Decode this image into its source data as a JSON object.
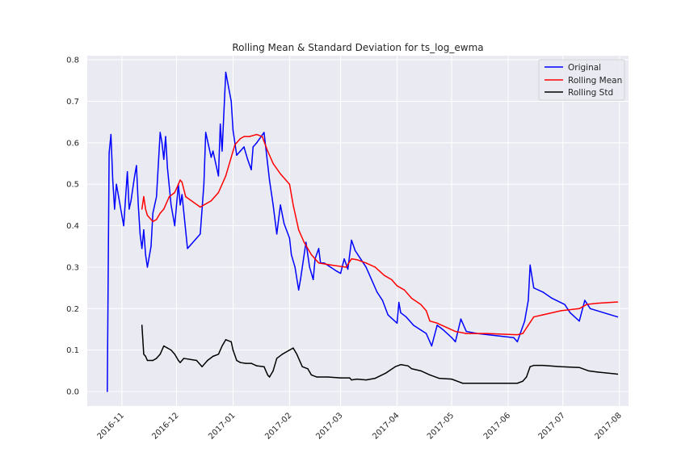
{
  "chart_data": {
    "type": "line",
    "title": "Rolling Mean & Standard Deviation for ts_log_ewma",
    "xlabel": "",
    "ylabel": "",
    "xlim": [
      "2016-10-13",
      "2017-08-06"
    ],
    "ylim": [
      -0.035,
      0.81
    ],
    "grid": true,
    "legend_position": "top-right",
    "x_ticks": [
      "2016-11-01",
      "2016-12-01",
      "2017-01-01",
      "2017-02-01",
      "2017-03-01",
      "2017-04-01",
      "2017-05-01",
      "2017-06-01",
      "2017-07-01",
      "2017-08-01"
    ],
    "x_tick_labels": [
      "2016-11",
      "2016-12",
      "2017-01",
      "2017-02",
      "2017-03",
      "2017-04",
      "2017-05",
      "2017-06",
      "2017-07",
      "2017-08"
    ],
    "y_ticks": [
      0.0,
      0.1,
      0.2,
      0.3,
      0.4,
      0.5,
      0.6,
      0.7,
      0.8
    ],
    "y_tick_labels": [
      "0.0",
      "0.1",
      "0.2",
      "0.3",
      "0.4",
      "0.5",
      "0.6",
      "0.7",
      "0.8"
    ],
    "series": [
      {
        "name": "Original",
        "color": "#0000ff",
        "points": [
          [
            "2016-10-24",
            0.0
          ],
          [
            "2016-10-25",
            0.575
          ],
          [
            "2016-10-26",
            0.62
          ],
          [
            "2016-10-27",
            0.51
          ],
          [
            "2016-10-28",
            0.44
          ],
          [
            "2016-10-29",
            0.5
          ],
          [
            "2016-10-31",
            0.45
          ],
          [
            "2016-11-02",
            0.4
          ],
          [
            "2016-11-04",
            0.53
          ],
          [
            "2016-11-05",
            0.44
          ],
          [
            "2016-11-06",
            0.46
          ],
          [
            "2016-11-08",
            0.52
          ],
          [
            "2016-11-09",
            0.545
          ],
          [
            "2016-11-10",
            0.45
          ],
          [
            "2016-11-11",
            0.38
          ],
          [
            "2016-11-12",
            0.345
          ],
          [
            "2016-11-13",
            0.39
          ],
          [
            "2016-11-14",
            0.33
          ],
          [
            "2016-11-15",
            0.3
          ],
          [
            "2016-11-17",
            0.35
          ],
          [
            "2016-11-18",
            0.43
          ],
          [
            "2016-11-20",
            0.47
          ],
          [
            "2016-11-22",
            0.625
          ],
          [
            "2016-11-23",
            0.6
          ],
          [
            "2016-11-24",
            0.56
          ],
          [
            "2016-11-25",
            0.615
          ],
          [
            "2016-11-26",
            0.54
          ],
          [
            "2016-11-28",
            0.45
          ],
          [
            "2016-11-30",
            0.4
          ],
          [
            "2016-12-02",
            0.5
          ],
          [
            "2016-12-03",
            0.45
          ],
          [
            "2016-12-04",
            0.475
          ],
          [
            "2016-12-07",
            0.345
          ],
          [
            "2016-12-14",
            0.38
          ],
          [
            "2016-12-16",
            0.5
          ],
          [
            "2016-12-17",
            0.625
          ],
          [
            "2016-12-20",
            0.565
          ],
          [
            "2016-12-21",
            0.58
          ],
          [
            "2016-12-24",
            0.52
          ],
          [
            "2016-12-25",
            0.645
          ],
          [
            "2016-12-26",
            0.58
          ],
          [
            "2016-12-28",
            0.77
          ],
          [
            "2016-12-31",
            0.7
          ],
          [
            "2017-01-01",
            0.63
          ],
          [
            "2017-01-03",
            0.57
          ],
          [
            "2017-01-05",
            0.58
          ],
          [
            "2017-01-07",
            0.59
          ],
          [
            "2017-01-09",
            0.56
          ],
          [
            "2017-01-11",
            0.535
          ],
          [
            "2017-01-12",
            0.59
          ],
          [
            "2017-01-14",
            0.6
          ],
          [
            "2017-01-18",
            0.625
          ],
          [
            "2017-01-21",
            0.51
          ],
          [
            "2017-01-23",
            0.45
          ],
          [
            "2017-01-25",
            0.38
          ],
          [
            "2017-01-27",
            0.45
          ],
          [
            "2017-01-29",
            0.405
          ],
          [
            "2017-02-01",
            0.37
          ],
          [
            "2017-02-02",
            0.33
          ],
          [
            "2017-02-04",
            0.3
          ],
          [
            "2017-02-06",
            0.245
          ],
          [
            "2017-02-07",
            0.27
          ],
          [
            "2017-02-10",
            0.36
          ],
          [
            "2017-02-12",
            0.3
          ],
          [
            "2017-02-14",
            0.27
          ],
          [
            "2017-02-15",
            0.32
          ],
          [
            "2017-02-17",
            0.345
          ],
          [
            "2017-02-18",
            0.31
          ],
          [
            "2017-02-20",
            0.31
          ],
          [
            "2017-02-27",
            0.29
          ],
          [
            "2017-03-01",
            0.285
          ],
          [
            "2017-03-03",
            0.32
          ],
          [
            "2017-03-05",
            0.295
          ],
          [
            "2017-03-07",
            0.365
          ],
          [
            "2017-03-09",
            0.34
          ],
          [
            "2017-03-12",
            0.32
          ],
          [
            "2017-03-15",
            0.3
          ],
          [
            "2017-03-18",
            0.27
          ],
          [
            "2017-03-21",
            0.24
          ],
          [
            "2017-03-24",
            0.22
          ],
          [
            "2017-03-27",
            0.185
          ],
          [
            "2017-04-01",
            0.165
          ],
          [
            "2017-04-02",
            0.215
          ],
          [
            "2017-04-03",
            0.19
          ],
          [
            "2017-04-06",
            0.18
          ],
          [
            "2017-04-10",
            0.16
          ],
          [
            "2017-04-17",
            0.14
          ],
          [
            "2017-04-20",
            0.11
          ],
          [
            "2017-04-23",
            0.16
          ],
          [
            "2017-04-26",
            0.15
          ],
          [
            "2017-05-01",
            0.13
          ],
          [
            "2017-05-03",
            0.12
          ],
          [
            "2017-05-06",
            0.175
          ],
          [
            "2017-05-09",
            0.145
          ],
          [
            "2017-05-15",
            0.14
          ],
          [
            "2017-06-04",
            0.13
          ],
          [
            "2017-06-06",
            0.12
          ],
          [
            "2017-06-10",
            0.17
          ],
          [
            "2017-06-12",
            0.22
          ],
          [
            "2017-06-13",
            0.305
          ],
          [
            "2017-06-15",
            0.25
          ],
          [
            "2017-06-20",
            0.24
          ],
          [
            "2017-06-25",
            0.225
          ],
          [
            "2017-07-02",
            0.21
          ],
          [
            "2017-07-05",
            0.19
          ],
          [
            "2017-07-10",
            0.17
          ],
          [
            "2017-07-13",
            0.22
          ],
          [
            "2017-07-16",
            0.2
          ],
          [
            "2017-07-31",
            0.18
          ]
        ]
      },
      {
        "name": "Rolling Mean",
        "color": "#ff0000",
        "points": [
          [
            "2016-11-12",
            0.44
          ],
          [
            "2016-11-13",
            0.47
          ],
          [
            "2016-11-14",
            0.44
          ],
          [
            "2016-11-15",
            0.425
          ],
          [
            "2016-11-18",
            0.41
          ],
          [
            "2016-11-20",
            0.415
          ],
          [
            "2016-11-22",
            0.43
          ],
          [
            "2016-11-24",
            0.44
          ],
          [
            "2016-11-27",
            0.47
          ],
          [
            "2016-11-30",
            0.48
          ],
          [
            "2016-12-02",
            0.5
          ],
          [
            "2016-12-03",
            0.51
          ],
          [
            "2016-12-04",
            0.505
          ],
          [
            "2016-12-06",
            0.47
          ],
          [
            "2016-12-14",
            0.445
          ],
          [
            "2016-12-16",
            0.45
          ],
          [
            "2016-12-20",
            0.46
          ],
          [
            "2016-12-24",
            0.48
          ],
          [
            "2016-12-28",
            0.52
          ],
          [
            "2016-12-31",
            0.565
          ],
          [
            "2017-01-02",
            0.595
          ],
          [
            "2017-01-05",
            0.61
          ],
          [
            "2017-01-07",
            0.615
          ],
          [
            "2017-01-10",
            0.615
          ],
          [
            "2017-01-14",
            0.62
          ],
          [
            "2017-01-17",
            0.615
          ],
          [
            "2017-01-20",
            0.58
          ],
          [
            "2017-01-23",
            0.55
          ],
          [
            "2017-01-27",
            0.525
          ],
          [
            "2017-02-01",
            0.5
          ],
          [
            "2017-02-03",
            0.45
          ],
          [
            "2017-02-06",
            0.39
          ],
          [
            "2017-02-09",
            0.36
          ],
          [
            "2017-02-13",
            0.33
          ],
          [
            "2017-02-17",
            0.31
          ],
          [
            "2017-02-24",
            0.305
          ],
          [
            "2017-03-04",
            0.3
          ],
          [
            "2017-03-07",
            0.32
          ],
          [
            "2017-03-10",
            0.318
          ],
          [
            "2017-03-15",
            0.31
          ],
          [
            "2017-03-20",
            0.3
          ],
          [
            "2017-03-25",
            0.28
          ],
          [
            "2017-03-29",
            0.27
          ],
          [
            "2017-04-01",
            0.255
          ],
          [
            "2017-04-05",
            0.245
          ],
          [
            "2017-04-09",
            0.225
          ],
          [
            "2017-04-14",
            0.21
          ],
          [
            "2017-04-17",
            0.195
          ],
          [
            "2017-04-19",
            0.17
          ],
          [
            "2017-04-23",
            0.165
          ],
          [
            "2017-04-28",
            0.155
          ],
          [
            "2017-05-03",
            0.145
          ],
          [
            "2017-05-09",
            0.14
          ],
          [
            "2017-05-20",
            0.14
          ],
          [
            "2017-06-06",
            0.137
          ],
          [
            "2017-06-09",
            0.14
          ],
          [
            "2017-06-12",
            0.16
          ],
          [
            "2017-06-15",
            0.18
          ],
          [
            "2017-06-20",
            0.185
          ],
          [
            "2017-06-30",
            0.195
          ],
          [
            "2017-07-10",
            0.2
          ],
          [
            "2017-07-14",
            0.21
          ],
          [
            "2017-07-20",
            0.213
          ],
          [
            "2017-07-31",
            0.216
          ]
        ]
      },
      {
        "name": "Rolling Std",
        "color": "#000000",
        "points": [
          [
            "2016-11-12",
            0.16
          ],
          [
            "2016-11-13",
            0.09
          ],
          [
            "2016-11-14",
            0.085
          ],
          [
            "2016-11-15",
            0.075
          ],
          [
            "2016-11-18",
            0.075
          ],
          [
            "2016-11-20",
            0.08
          ],
          [
            "2016-11-22",
            0.09
          ],
          [
            "2016-11-24",
            0.11
          ],
          [
            "2016-11-26",
            0.105
          ],
          [
            "2016-11-28",
            0.1
          ],
          [
            "2016-11-30",
            0.09
          ],
          [
            "2016-12-02",
            0.075
          ],
          [
            "2016-12-03",
            0.07
          ],
          [
            "2016-12-05",
            0.08
          ],
          [
            "2016-12-12",
            0.075
          ],
          [
            "2016-12-15",
            0.06
          ],
          [
            "2016-12-18",
            0.075
          ],
          [
            "2016-12-21",
            0.085
          ],
          [
            "2016-12-24",
            0.09
          ],
          [
            "2016-12-26",
            0.11
          ],
          [
            "2016-12-28",
            0.125
          ],
          [
            "2016-12-31",
            0.12
          ],
          [
            "2017-01-01",
            0.1
          ],
          [
            "2017-01-03",
            0.075
          ],
          [
            "2017-01-05",
            0.07
          ],
          [
            "2017-01-08",
            0.068
          ],
          [
            "2017-01-11",
            0.068
          ],
          [
            "2017-01-14",
            0.062
          ],
          [
            "2017-01-18",
            0.06
          ],
          [
            "2017-01-20",
            0.04
          ],
          [
            "2017-01-21",
            0.035
          ],
          [
            "2017-01-23",
            0.05
          ],
          [
            "2017-01-25",
            0.08
          ],
          [
            "2017-01-28",
            0.09
          ],
          [
            "2017-02-01",
            0.1
          ],
          [
            "2017-02-03",
            0.105
          ],
          [
            "2017-02-05",
            0.09
          ],
          [
            "2017-02-08",
            0.06
          ],
          [
            "2017-02-11",
            0.055
          ],
          [
            "2017-02-13",
            0.04
          ],
          [
            "2017-02-16",
            0.035
          ],
          [
            "2017-02-22",
            0.035
          ],
          [
            "2017-03-01",
            0.033
          ],
          [
            "2017-03-06",
            0.033
          ],
          [
            "2017-03-07",
            0.028
          ],
          [
            "2017-03-10",
            0.03
          ],
          [
            "2017-03-15",
            0.028
          ],
          [
            "2017-03-20",
            0.032
          ],
          [
            "2017-03-26",
            0.045
          ],
          [
            "2017-03-31",
            0.06
          ],
          [
            "2017-04-03",
            0.065
          ],
          [
            "2017-04-07",
            0.062
          ],
          [
            "2017-04-09",
            0.055
          ],
          [
            "2017-04-14",
            0.05
          ],
          [
            "2017-04-19",
            0.04
          ],
          [
            "2017-04-24",
            0.032
          ],
          [
            "2017-05-01",
            0.03
          ],
          [
            "2017-05-04",
            0.025
          ],
          [
            "2017-05-07",
            0.02
          ],
          [
            "2017-06-06",
            0.02
          ],
          [
            "2017-06-09",
            0.025
          ],
          [
            "2017-06-11",
            0.035
          ],
          [
            "2017-06-13",
            0.06
          ],
          [
            "2017-06-15",
            0.063
          ],
          [
            "2017-06-20",
            0.063
          ],
          [
            "2017-06-30",
            0.06
          ],
          [
            "2017-07-10",
            0.058
          ],
          [
            "2017-07-15",
            0.05
          ],
          [
            "2017-07-20",
            0.047
          ],
          [
            "2017-07-31",
            0.042
          ]
        ]
      }
    ]
  }
}
